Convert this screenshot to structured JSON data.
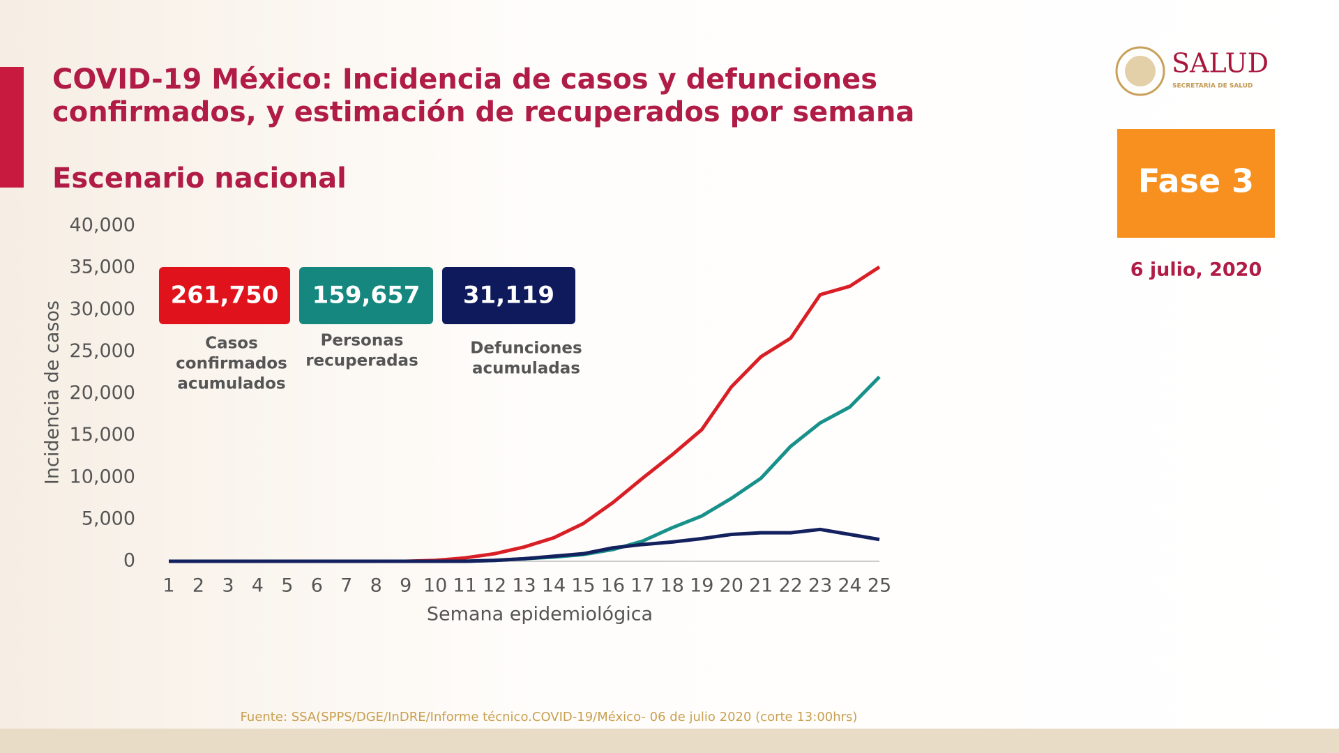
{
  "header": {
    "title_line1": "COVID-19 México: Incidencia de casos y defunciones",
    "title_line2": "confirmados, y estimación de recuperados por semana",
    "subtitle": "Escenario nacional",
    "logo": "SALUD",
    "logo_sub": "SECRETARÍA DE SALUD",
    "phase": "Fase 3",
    "date": "6 julio, 2020"
  },
  "summary": [
    {
      "value": "261,750",
      "label_lines": [
        "Casos",
        "confirmados",
        "acumulados"
      ],
      "color": "#e0121b"
    },
    {
      "value": "159,657",
      "label_lines": [
        "Personas",
        "recuperadas"
      ],
      "color": "#15877f"
    },
    {
      "value": "31,119",
      "label_lines": [
        "Defunciones",
        "acumuladas"
      ],
      "color": "#0e1a5c"
    }
  ],
  "source": "Fuente: SSA(SPPS/DGE/InDRE/Informe técnico.COVID-19/México- 06 de julio 2020 (corte 13:00hrs)",
  "chart_data": {
    "type": "line",
    "x_label": "Semana epidemiológica",
    "y_label": "Incidencia de casos",
    "categories": [
      "1",
      "2",
      "3",
      "4",
      "5",
      "6",
      "7",
      "8",
      "9",
      "10",
      "11",
      "12",
      "13",
      "14",
      "15",
      "16",
      "17",
      "18",
      "19",
      "20",
      "21",
      "22",
      "23",
      "24",
      "25"
    ],
    "series": [
      {
        "color": "#d91f26",
        "values": [
          0,
          0,
          0,
          0,
          0,
          0,
          0,
          0,
          0,
          100,
          400,
          900,
          1700,
          2800,
          4500,
          7000,
          9900,
          12700,
          15700,
          20800,
          24400,
          26600,
          31800,
          32800,
          35100
        ]
      },
      {
        "color": "#17918a",
        "values": [
          0,
          0,
          0,
          0,
          0,
          0,
          0,
          0,
          0,
          0,
          0,
          100,
          300,
          500,
          800,
          1400,
          2400,
          4000,
          5400,
          7500,
          9900,
          13700,
          16500,
          18400,
          22000
        ]
      },
      {
        "color": "#13215e",
        "values": [
          0,
          0,
          0,
          0,
          0,
          0,
          0,
          0,
          0,
          0,
          0,
          100,
          300,
          600,
          900,
          1600,
          2000,
          2300,
          2700,
          3200,
          3400,
          3400,
          3800,
          3200,
          2600
        ]
      }
    ],
    "ylim": [
      0,
      40000
    ],
    "yticks": [
      0,
      {
        "value": 5000,
        "label": "5,000"
      },
      {
        "value": 10000,
        "label": "10,000"
      },
      {
        "value": 15000,
        "label": "15,000"
      },
      {
        "value": 20000,
        "label": "20,000"
      },
      {
        "value": 25000,
        "label": "25,000"
      },
      {
        "value": 30000,
        "label": "30,000"
      },
      {
        "value": 35000,
        "label": "35,000"
      },
      {
        "value": 40000,
        "label": "40,000"
      }
    ]
  }
}
